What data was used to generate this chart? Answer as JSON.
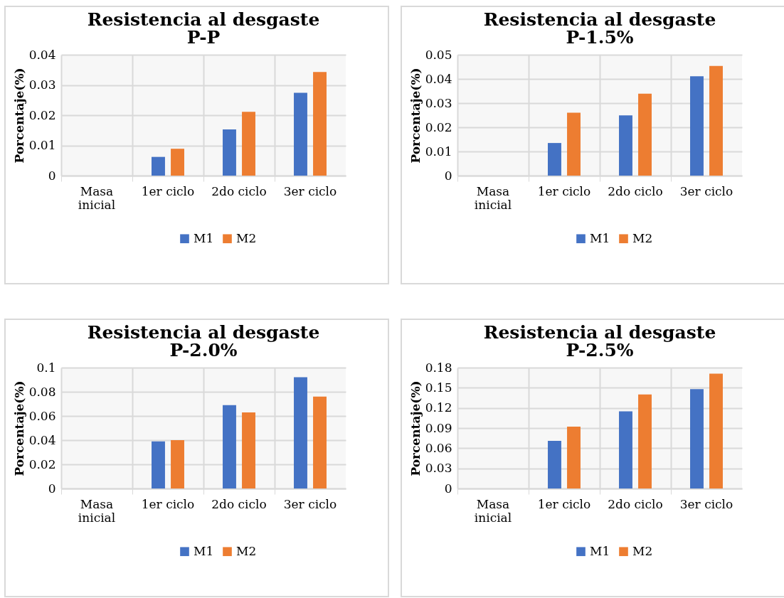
{
  "chart_data": [
    {
      "type": "bar",
      "title": "Resistencia al desgaste",
      "subtitle": "P-P",
      "ylabel": "Porcentaje(%)",
      "categories": [
        "Masa inicial",
        "1er ciclo",
        "2do ciclo",
        "3er ciclo"
      ],
      "ylim": [
        0,
        0.04
      ],
      "yticks": [
        0,
        0.01,
        0.02,
        0.03,
        0.04
      ],
      "grid": true,
      "legend": "bottom",
      "series": [
        {
          "name": "M1",
          "color": "#4472c4",
          "values": [
            0,
            0.0062,
            0.0153,
            0.0274
          ]
        },
        {
          "name": "M2",
          "color": "#ed7d31",
          "values": [
            0,
            0.0089,
            0.0211,
            0.0343
          ]
        }
      ]
    },
    {
      "type": "bar",
      "title": "Resistencia al desgaste",
      "subtitle": "P-1.5%",
      "ylabel": "Porcentaje(%)",
      "categories": [
        "Masa inicial",
        "1er ciclo",
        "2do ciclo",
        "3er ciclo"
      ],
      "ylim": [
        0,
        0.05
      ],
      "yticks": [
        0,
        0.01,
        0.02,
        0.03,
        0.04,
        0.05
      ],
      "grid": true,
      "legend": "bottom",
      "series": [
        {
          "name": "M1",
          "color": "#4472c4",
          "values": [
            0,
            0.0135,
            0.0249,
            0.0411
          ]
        },
        {
          "name": "M2",
          "color": "#ed7d31",
          "values": [
            0,
            0.026,
            0.0339,
            0.0454
          ]
        }
      ]
    },
    {
      "type": "bar",
      "title": "Resistencia al desgaste",
      "subtitle": "P-2.0%",
      "ylabel": "Porcentaje(%)",
      "categories": [
        "Masa inicial",
        "1er ciclo",
        "2do ciclo",
        "3er ciclo"
      ],
      "ylim": [
        0,
        0.1
      ],
      "yticks": [
        0,
        0.02,
        0.04,
        0.06,
        0.08,
        0.1
      ],
      "grid": true,
      "legend": "bottom",
      "series": [
        {
          "name": "M1",
          "color": "#4472c4",
          "values": [
            0,
            0.039,
            0.069,
            0.092
          ]
        },
        {
          "name": "M2",
          "color": "#ed7d31",
          "values": [
            0,
            0.04,
            0.063,
            0.076
          ]
        }
      ]
    },
    {
      "type": "bar",
      "title": "Resistencia al desgaste",
      "subtitle": "P-2.5%",
      "ylabel": "Porcentaje(%)",
      "categories": [
        "Masa inicial",
        "1er ciclo",
        "2do ciclo",
        "3er ciclo"
      ],
      "ylim": [
        0,
        0.18
      ],
      "yticks": [
        0,
        0.03,
        0.06,
        0.09,
        0.12,
        0.15,
        0.18
      ],
      "grid": true,
      "legend": "bottom",
      "series": [
        {
          "name": "M1",
          "color": "#4472c4",
          "values": [
            0,
            0.071,
            0.115,
            0.148
          ]
        },
        {
          "name": "M2",
          "color": "#ed7d31",
          "values": [
            0,
            0.092,
            0.14,
            0.171
          ]
        }
      ]
    }
  ]
}
